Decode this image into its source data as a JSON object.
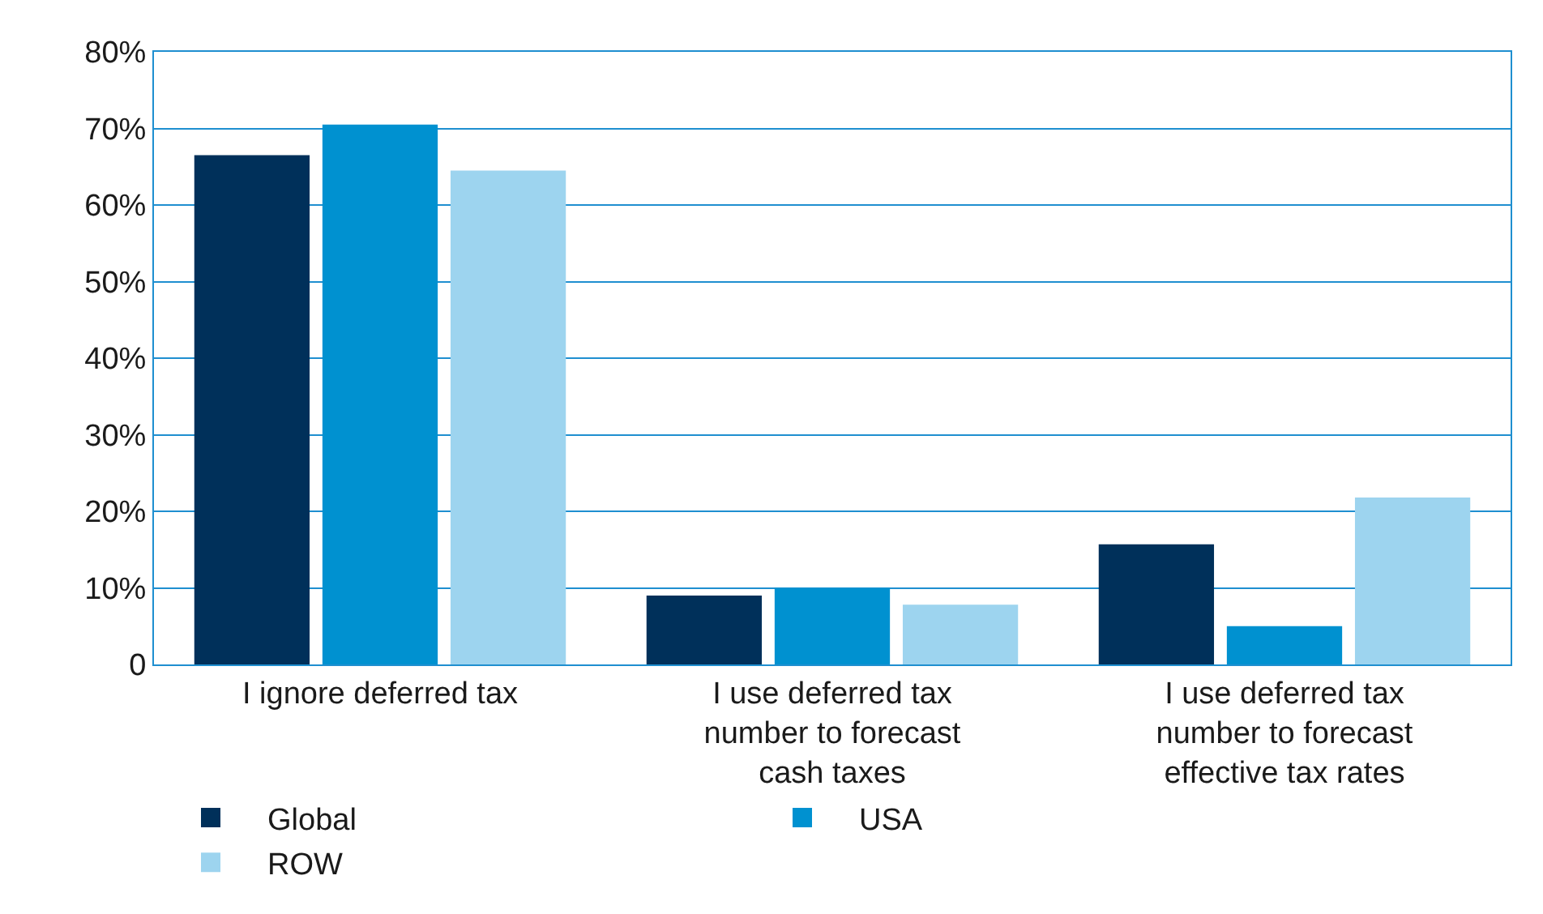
{
  "chart_data": {
    "type": "bar",
    "categories": [
      "I ignore deferred tax",
      "I use deferred tax number to forecast cash taxes",
      "I use deferred tax number to forecast effective tax rates"
    ],
    "series": [
      {
        "name": "Global",
        "color": "#00305a",
        "values": [
          66.5,
          9,
          15.7
        ]
      },
      {
        "name": "USA",
        "color": "#0091d0",
        "values": [
          70.5,
          10,
          5
        ]
      },
      {
        "name": "ROW",
        "color": "#9dd4ef",
        "values": [
          64.5,
          7.8,
          21.8
        ]
      }
    ],
    "ylim": [
      0,
      80
    ],
    "yticks": [
      {
        "value": 0,
        "label": "0"
      },
      {
        "value": 10,
        "label": "10%"
      },
      {
        "value": 20,
        "label": "20%"
      },
      {
        "value": 30,
        "label": "30%"
      },
      {
        "value": 40,
        "label": "40%"
      },
      {
        "value": 50,
        "label": "50%"
      },
      {
        "value": 60,
        "label": "60%"
      },
      {
        "value": 70,
        "label": "70%"
      },
      {
        "value": 80,
        "label": "80%"
      }
    ],
    "grid": "y",
    "legend": "bottom"
  }
}
